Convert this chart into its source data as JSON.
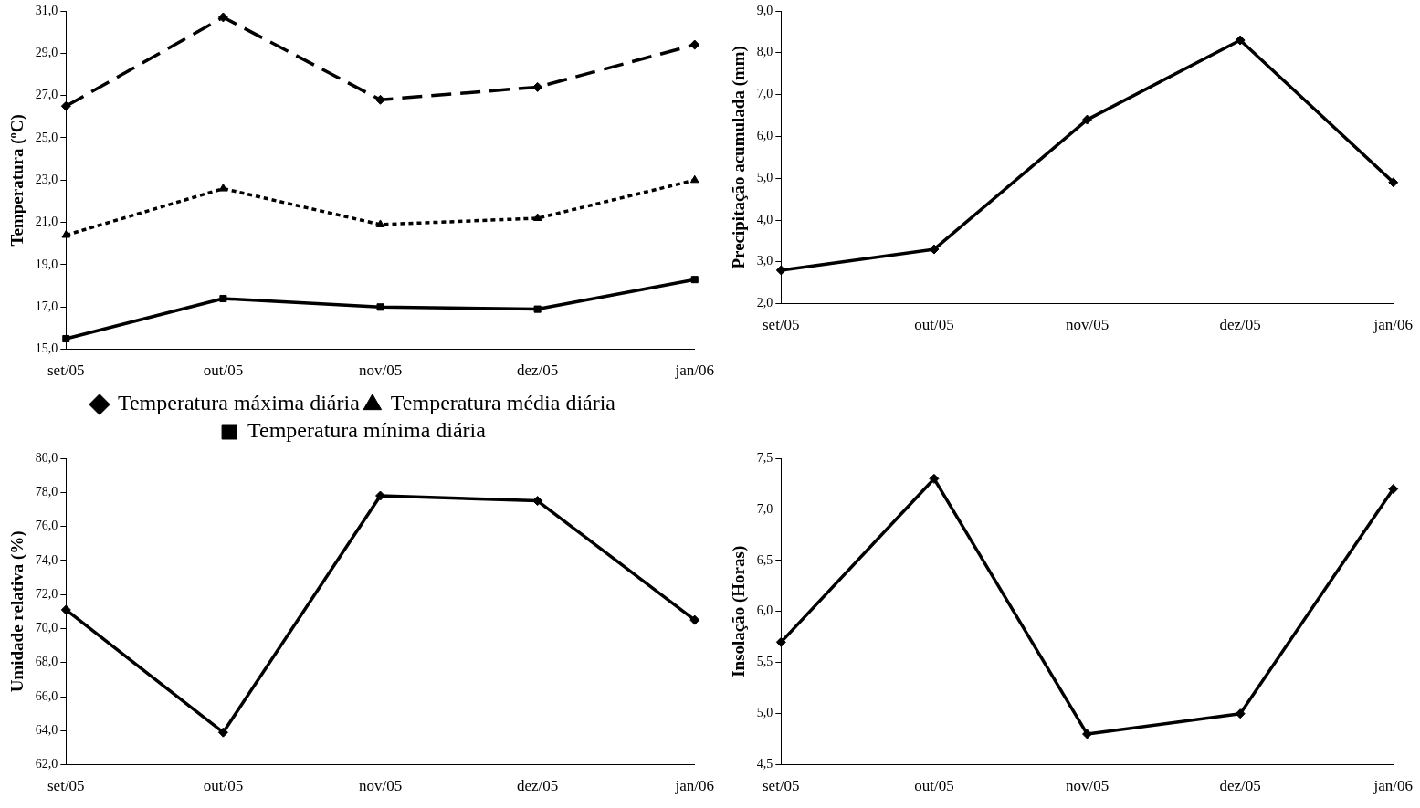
{
  "chart_data": [
    {
      "type": "line",
      "ylabel": "Temperatura (ºC)",
      "categories": [
        "set/05",
        "out/05",
        "nov/05",
        "dez/05",
        "jan/06"
      ],
      "ylim": [
        15,
        31
      ],
      "yticks": [
        {
          "value": 15,
          "label": "15,0"
        },
        {
          "value": 17,
          "label": "17,0"
        },
        {
          "value": 19,
          "label": "19,0"
        },
        {
          "value": 21,
          "label": "21,0"
        },
        {
          "value": 23,
          "label": "23,0"
        },
        {
          "value": 25,
          "label": "25,0"
        },
        {
          "value": 27,
          "label": "27,0"
        },
        {
          "value": 29,
          "label": "29,0"
        },
        {
          "value": 31,
          "label": "31,0"
        }
      ],
      "grid": false,
      "legend": "bottom",
      "series": [
        {
          "name": "Temperatura máxima diária",
          "color": "#000000",
          "values": [
            26.5,
            30.7,
            26.8,
            27.4,
            29.4
          ],
          "marker": "diamond",
          "line_style": "dashed"
        },
        {
          "name": "Temperatura média diária",
          "color": "#000000",
          "values": [
            20.4,
            22.6,
            20.9,
            21.2,
            23.0
          ],
          "marker": "triangle",
          "line_style": "dotted"
        },
        {
          "name": "Temperatura mínima diária",
          "color": "#000000",
          "values": [
            15.5,
            17.4,
            17.0,
            16.9,
            18.3
          ],
          "marker": "square",
          "line_style": "solid"
        }
      ]
    },
    {
      "type": "line",
      "ylabel": "Precipitação acumulada (mm)",
      "categories": [
        "set/05",
        "out/05",
        "nov/05",
        "dez/05",
        "jan/06"
      ],
      "ylim": [
        2,
        9
      ],
      "yticks": [
        {
          "value": 2,
          "label": "2,0"
        },
        {
          "value": 3,
          "label": "3,0"
        },
        {
          "value": 4,
          "label": "4,0"
        },
        {
          "value": 5,
          "label": "5,0"
        },
        {
          "value": 6,
          "label": "6,0"
        },
        {
          "value": 7,
          "label": "7,0"
        },
        {
          "value": 8,
          "label": "8,0"
        },
        {
          "value": 9,
          "label": "9,0"
        }
      ],
      "grid": false,
      "series": [
        {
          "color": "#000000",
          "values": [
            2.8,
            3.3,
            6.4,
            8.3,
            4.9
          ],
          "marker": "diamond",
          "line_style": "solid"
        }
      ]
    },
    {
      "type": "line",
      "ylabel": "Umidade relativa (%)",
      "categories": [
        "set/05",
        "out/05",
        "nov/05",
        "dez/05",
        "jan/06"
      ],
      "ylim": [
        62,
        80
      ],
      "yticks": [
        {
          "value": 62,
          "label": "62,0"
        },
        {
          "value": 64,
          "label": "64,0"
        },
        {
          "value": 66,
          "label": "66,0"
        },
        {
          "value": 68,
          "label": "68,0"
        },
        {
          "value": 70,
          "label": "70,0"
        },
        {
          "value": 72,
          "label": "72,0"
        },
        {
          "value": 74,
          "label": "74,0"
        },
        {
          "value": 76,
          "label": "76,0"
        },
        {
          "value": 78,
          "label": "78,0"
        },
        {
          "value": 80,
          "label": "80,0"
        }
      ],
      "grid": false,
      "series": [
        {
          "color": "#000000",
          "values": [
            71.1,
            63.9,
            77.8,
            77.5,
            70.5
          ],
          "marker": "diamond",
          "line_style": "solid"
        }
      ]
    },
    {
      "type": "line",
      "ylabel": "Insolação (Horas)",
      "categories": [
        "set/05",
        "out/05",
        "nov/05",
        "dez/05",
        "jan/06"
      ],
      "ylim": [
        4.5,
        7.5
      ],
      "yticks": [
        {
          "value": 4.5,
          "label": "4,5"
        },
        {
          "value": 5,
          "label": "5,0"
        },
        {
          "value": 5.5,
          "label": "5,5"
        },
        {
          "value": 6,
          "label": "6,0"
        },
        {
          "value": 6.5,
          "label": "6,5"
        },
        {
          "value": 7,
          "label": "7,0"
        },
        {
          "value": 7.5,
          "label": "7,5"
        }
      ],
      "grid": false,
      "series": [
        {
          "color": "#000000",
          "values": [
            5.7,
            7.3,
            4.8,
            5.0,
            7.2
          ],
          "marker": "diamond",
          "line_style": "solid"
        }
      ]
    }
  ]
}
